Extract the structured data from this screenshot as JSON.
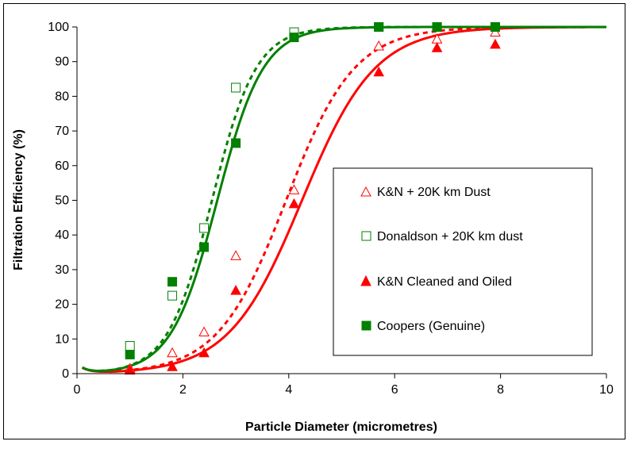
{
  "chart_data": {
    "type": "scatter",
    "title": "",
    "xlabel": "Particle Diameter (micrometres)",
    "ylabel": "Filtration Efficiency (%)",
    "xlim": [
      0,
      10
    ],
    "ylim": [
      0,
      100
    ],
    "xticks": [
      0,
      2,
      4,
      6,
      8,
      10
    ],
    "yticks": [
      0,
      10,
      20,
      30,
      40,
      50,
      60,
      70,
      80,
      90,
      100
    ],
    "grid": false,
    "legend_position": "right",
    "series": [
      {
        "name": "K&N + 20K km Dust",
        "marker": "triangle-open",
        "color": "#ff0000",
        "line_style": "dashed",
        "x": [
          1.0,
          1.8,
          2.4,
          3.0,
          4.1,
          5.7,
          6.8,
          7.9
        ],
        "y": [
          1.5,
          6,
          12,
          34,
          53,
          94.5,
          96.5,
          98.5
        ]
      },
      {
        "name": "Donaldson + 20K km dust",
        "marker": "square-open",
        "color": "#008000",
        "line_style": "dashed",
        "x": [
          1.0,
          1.8,
          2.4,
          3.0,
          4.1,
          5.7,
          6.8,
          7.9
        ],
        "y": [
          8,
          22.5,
          42,
          82.5,
          98.5,
          100,
          100,
          100
        ]
      },
      {
        "name": "K&N Cleaned and Oiled",
        "marker": "triangle-filled",
        "color": "#ff0000",
        "line_style": "solid",
        "x": [
          1.0,
          1.8,
          2.4,
          3.0,
          4.1,
          5.7,
          6.8,
          7.9
        ],
        "y": [
          1,
          2,
          6,
          24,
          49,
          87,
          94,
          95
        ]
      },
      {
        "name": "Coopers (Genuine)",
        "marker": "square-filled",
        "color": "#008000",
        "line_style": "solid",
        "x": [
          1.0,
          1.8,
          2.4,
          3.0,
          4.1,
          5.7,
          6.8,
          7.9
        ],
        "y": [
          5.5,
          26.5,
          36.5,
          66.5,
          97,
          100,
          100,
          100
        ]
      }
    ],
    "fit_curves": [
      {
        "series": "K&N + 20K km Dust",
        "type": "logistic",
        "x50": 3.95,
        "slope": 1.55,
        "min_dip": 0.8
      },
      {
        "series": "Donaldson + 20K km dust",
        "type": "logistic",
        "x50": 2.55,
        "slope": 2.4,
        "min_dip": 1.5
      },
      {
        "series": "K&N Cleaned and Oiled",
        "type": "logistic",
        "x50": 4.25,
        "slope": 1.45,
        "min_dip": 0.5
      },
      {
        "series": "Coopers (Genuine)",
        "type": "logistic",
        "x50": 2.65,
        "slope": 2.3,
        "min_dip": 1.2
      }
    ]
  }
}
